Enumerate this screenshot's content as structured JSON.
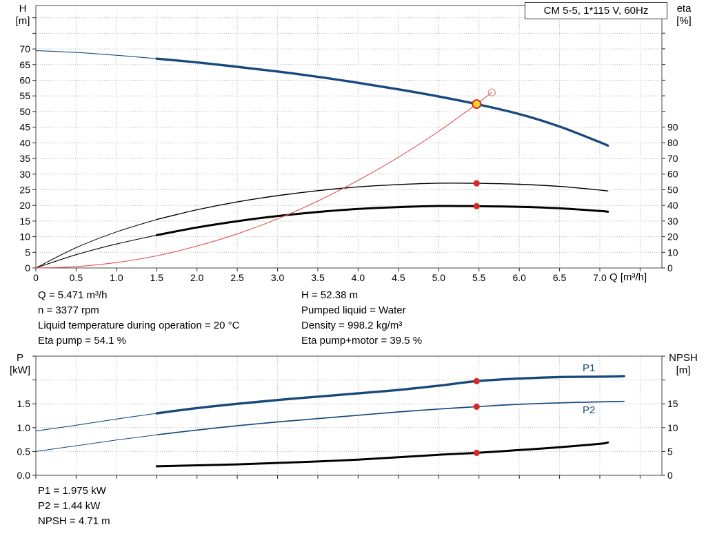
{
  "title_box": {
    "text": "CM 5-5, 1*115 V, 60Hz"
  },
  "axis_labels": {
    "h": [
      "H",
      "[m]"
    ],
    "eta": [
      "eta",
      "[%]"
    ],
    "q": "Q [m³/h]",
    "p": [
      "P",
      "[kW]"
    ],
    "npsh": [
      "NPSH",
      "[m]"
    ]
  },
  "curve_labels": {
    "p1": "P1",
    "p2": "P2"
  },
  "operating_point": {
    "left": [
      "Q = 5.471 m³/h",
      "n = 3377 rpm",
      "Liquid temperature during operation = 20 °C",
      "Eta pump = 54.1 %"
    ],
    "right": [
      "H = 52.38 m",
      "Pumped liquid = Water",
      "Density = 998.2 kg/m³",
      "Eta pump+motor = 39.5 %"
    ]
  },
  "footer": [
    "P1 = 1.975 kW",
    "P2 = 1.44 kW",
    "NPSH = 4.71 m"
  ],
  "colors": {
    "curve_blue": "#17497b",
    "curve_black": "#000000",
    "red": "#d42a2a",
    "red_light": "#e89090",
    "duty_fill": "#ffd42a",
    "grid": "#b8b8b8"
  },
  "chart_data": [
    {
      "type": "line",
      "title": "CM 5-5, 1*115 V, 60Hz",
      "x_axis": {
        "label": "Q [m³/h]",
        "min": 0,
        "max": 7.77,
        "show_labels": true,
        "ticks": [
          [
            0,
            "0"
          ],
          [
            0.5,
            "0.5"
          ],
          [
            1,
            "1.0"
          ],
          [
            1.5,
            "1.5"
          ],
          [
            2,
            "2.0"
          ],
          [
            2.5,
            "2.5"
          ],
          [
            3,
            "3.0"
          ],
          [
            3.5,
            "3.5"
          ],
          [
            4,
            "4.0"
          ],
          [
            4.5,
            "4.5"
          ],
          [
            5,
            "5.0"
          ],
          [
            5.5,
            "5.5"
          ],
          [
            6,
            "6.0"
          ],
          [
            6.5,
            "6.5"
          ],
          [
            7,
            "7.0"
          ],
          [
            7.5,
            ""
          ]
        ]
      },
      "y_left": {
        "label": "H [m]",
        "min": 0,
        "max": 83.9,
        "ticks": [
          [
            0,
            "0"
          ],
          [
            5,
            "5"
          ],
          [
            10,
            "10"
          ],
          [
            15,
            "15"
          ],
          [
            20,
            "20"
          ],
          [
            25,
            "25"
          ],
          [
            30,
            "30"
          ],
          [
            35,
            "35"
          ],
          [
            40,
            "40"
          ],
          [
            45,
            "45"
          ],
          [
            50,
            "50"
          ],
          [
            55,
            "55"
          ],
          [
            60,
            "60"
          ],
          [
            65,
            "65"
          ],
          [
            70,
            "70"
          ],
          [
            75,
            ""
          ],
          [
            80,
            ""
          ]
        ]
      },
      "y_right": {
        "label": "eta [%]",
        "min": 0,
        "max": 167.7,
        "ticks": [
          [
            0,
            "0"
          ],
          [
            10,
            "10"
          ],
          [
            20,
            "20"
          ],
          [
            30,
            "30"
          ],
          [
            40,
            "40"
          ],
          [
            50,
            "50"
          ],
          [
            60,
            "60"
          ],
          [
            70,
            "70"
          ],
          [
            80,
            "80"
          ],
          [
            90,
            "90"
          ],
          [
            100,
            ""
          ],
          [
            110,
            ""
          ],
          [
            120,
            ""
          ],
          [
            130,
            ""
          ],
          [
            140,
            ""
          ],
          [
            150,
            ""
          ],
          [
            160,
            ""
          ]
        ]
      },
      "series": [
        {
          "name": "eta-pump-motor-curve",
          "axis": "right",
          "color": "#000000",
          "width": 3,
          "thin_width": 1.1,
          "split": 1.5,
          "points": [
            [
              0,
              0
            ],
            [
              0.5,
              8.5
            ],
            [
              1,
              15.3
            ],
            [
              1.5,
              21
            ],
            [
              2,
              25.9
            ],
            [
              2.5,
              29.9
            ],
            [
              3,
              33.2
            ],
            [
              3.5,
              35.8
            ],
            [
              4,
              37.7
            ],
            [
              4.5,
              38.9
            ],
            [
              5,
              39.6
            ],
            [
              5.471,
              39.5
            ],
            [
              6,
              39.1
            ],
            [
              6.5,
              38.1
            ],
            [
              7,
              36.4
            ],
            [
              7.1,
              35.9
            ]
          ]
        },
        {
          "name": "eta-pump-curve",
          "axis": "right",
          "color": "#000000",
          "width": 1.4,
          "thin_width": 1,
          "split": 1.5,
          "points": [
            [
              0,
              0
            ],
            [
              0.5,
              13
            ],
            [
              1,
              23
            ],
            [
              1.5,
              31
            ],
            [
              2,
              37.2
            ],
            [
              2.5,
              42.2
            ],
            [
              3,
              46.2
            ],
            [
              3.5,
              49.4
            ],
            [
              4,
              51.8
            ],
            [
              4.5,
              53.3
            ],
            [
              5,
              54.2
            ],
            [
              5.471,
              54.1
            ],
            [
              6,
              53.5
            ],
            [
              6.5,
              52.1
            ],
            [
              7,
              49.8
            ],
            [
              7.1,
              49.2
            ]
          ]
        },
        {
          "name": "system-curve",
          "axis": "left",
          "color": "#e06060",
          "width": 1.2,
          "thin_width": 1.2,
          "split": null,
          "points": [
            [
              0,
              0
            ],
            [
              0.5,
              0.44
            ],
            [
              1,
              1.75
            ],
            [
              1.5,
              3.9
            ],
            [
              2,
              7.0
            ],
            [
              2.5,
              10.9
            ],
            [
              3,
              15.7
            ],
            [
              3.5,
              21.4
            ],
            [
              4,
              28.0
            ],
            [
              4.5,
              35.4
            ],
            [
              5,
              43.7
            ],
            [
              5.471,
              52.38
            ],
            [
              5.66,
              56.1
            ]
          ]
        },
        {
          "name": "pump-h-curve",
          "axis": "left",
          "color": "#17497b",
          "width": 3.4,
          "thin_width": 1.1,
          "split": 1.5,
          "points": [
            [
              0,
              69.5
            ],
            [
              0.5,
              68.9
            ],
            [
              1,
              68.0
            ],
            [
              1.5,
              66.9
            ],
            [
              2,
              65.7
            ],
            [
              2.5,
              64.3
            ],
            [
              3,
              62.8
            ],
            [
              3.5,
              61.1
            ],
            [
              4,
              59.2
            ],
            [
              4.5,
              57.1
            ],
            [
              5,
              54.8
            ],
            [
              5.471,
              52.38
            ],
            [
              6,
              49.2
            ],
            [
              6.5,
              45.2
            ],
            [
              7,
              40.2
            ],
            [
              7.1,
              39.1
            ]
          ]
        }
      ],
      "markers": [
        {
          "name": "duty-preview-point",
          "q": 5.66,
          "v": 56.1,
          "axis": "left",
          "style": "open"
        },
        {
          "name": "duty-point",
          "q": 5.471,
          "v": 52.38,
          "axis": "left",
          "style": "duty"
        },
        {
          "name": "eta-pump-dot",
          "q": 5.471,
          "v": 54.1,
          "axis": "right",
          "style": "dot"
        },
        {
          "name": "eta-pump-motor-dot",
          "q": 5.471,
          "v": 39.5,
          "axis": "right",
          "style": "dot"
        }
      ]
    },
    {
      "type": "line",
      "title": "",
      "x_axis": {
        "label": "",
        "min": 0,
        "max": 7.77,
        "show_labels": false,
        "ticks": [
          [
            0,
            ""
          ],
          [
            0.5,
            ""
          ],
          [
            1,
            ""
          ],
          [
            1.5,
            ""
          ],
          [
            2,
            ""
          ],
          [
            2.5,
            ""
          ],
          [
            3,
            ""
          ],
          [
            3.5,
            ""
          ],
          [
            4,
            ""
          ],
          [
            4.5,
            ""
          ],
          [
            5,
            ""
          ],
          [
            5.5,
            ""
          ],
          [
            6,
            ""
          ],
          [
            6.5,
            ""
          ],
          [
            7,
            ""
          ],
          [
            7.5,
            ""
          ]
        ]
      },
      "y_left": {
        "label": "P [kW]",
        "min": 0,
        "max": 2.5,
        "ticks": [
          [
            0,
            "0.0"
          ],
          [
            0.5,
            "0.5"
          ],
          [
            1,
            "1.0"
          ],
          [
            1.5,
            "1.5"
          ],
          [
            2,
            ""
          ],
          [
            2.5,
            ""
          ]
        ]
      },
      "y_right": {
        "label": "NPSH [m]",
        "min": 0,
        "max": 25,
        "ticks": [
          [
            0,
            "0"
          ],
          [
            5,
            "5"
          ],
          [
            10,
            "10"
          ],
          [
            15,
            "15"
          ],
          [
            20,
            ""
          ],
          [
            25,
            ""
          ]
        ]
      },
      "series": [
        {
          "name": "npsh-curve",
          "axis": "right",
          "color": "#000000",
          "width": 3,
          "thin_width": 3,
          "split": null,
          "points": [
            [
              1.5,
              1.9
            ],
            [
              2,
              2.1
            ],
            [
              2.5,
              2.3
            ],
            [
              3,
              2.6
            ],
            [
              3.5,
              2.9
            ],
            [
              4,
              3.3
            ],
            [
              4.5,
              3.8
            ],
            [
              5,
              4.3
            ],
            [
              5.471,
              4.71
            ],
            [
              6,
              5.3
            ],
            [
              6.5,
              5.9
            ],
            [
              7,
              6.6
            ],
            [
              7.1,
              6.9
            ]
          ]
        },
        {
          "name": "p2-curve",
          "axis": "left",
          "color": "#17497b",
          "width": 1.7,
          "thin_width": 1,
          "split": 1.5,
          "points": [
            [
              0,
              0.5
            ],
            [
              0.5,
              0.62
            ],
            [
              1,
              0.74
            ],
            [
              1.5,
              0.85
            ],
            [
              2,
              0.95
            ],
            [
              2.5,
              1.04
            ],
            [
              3,
              1.12
            ],
            [
              3.5,
              1.19
            ],
            [
              4,
              1.26
            ],
            [
              4.5,
              1.33
            ],
            [
              5,
              1.39
            ],
            [
              5.471,
              1.44
            ],
            [
              6,
              1.49
            ],
            [
              6.5,
              1.52
            ],
            [
              7,
              1.54
            ],
            [
              7.3,
              1.55
            ]
          ]
        },
        {
          "name": "p1-curve",
          "axis": "left",
          "color": "#17497b",
          "width": 3.4,
          "thin_width": 1.1,
          "split": 1.5,
          "points": [
            [
              0,
              0.93
            ],
            [
              0.5,
              1.05
            ],
            [
              1,
              1.18
            ],
            [
              1.5,
              1.3
            ],
            [
              2,
              1.41
            ],
            [
              2.5,
              1.5
            ],
            [
              3,
              1.58
            ],
            [
              3.5,
              1.65
            ],
            [
              4,
              1.72
            ],
            [
              4.5,
              1.79
            ],
            [
              5,
              1.88
            ],
            [
              5.471,
              1.975
            ],
            [
              6,
              2.03
            ],
            [
              6.5,
              2.06
            ],
            [
              7,
              2.07
            ],
            [
              7.3,
              2.08
            ]
          ]
        }
      ],
      "markers": [
        {
          "name": "p1-dot",
          "q": 5.471,
          "v": 1.975,
          "axis": "left",
          "style": "dot"
        },
        {
          "name": "p2-dot",
          "q": 5.471,
          "v": 1.44,
          "axis": "left",
          "style": "dot"
        },
        {
          "name": "npsh-dot",
          "q": 5.471,
          "v": 4.71,
          "axis": "right",
          "style": "dot"
        }
      ]
    }
  ]
}
